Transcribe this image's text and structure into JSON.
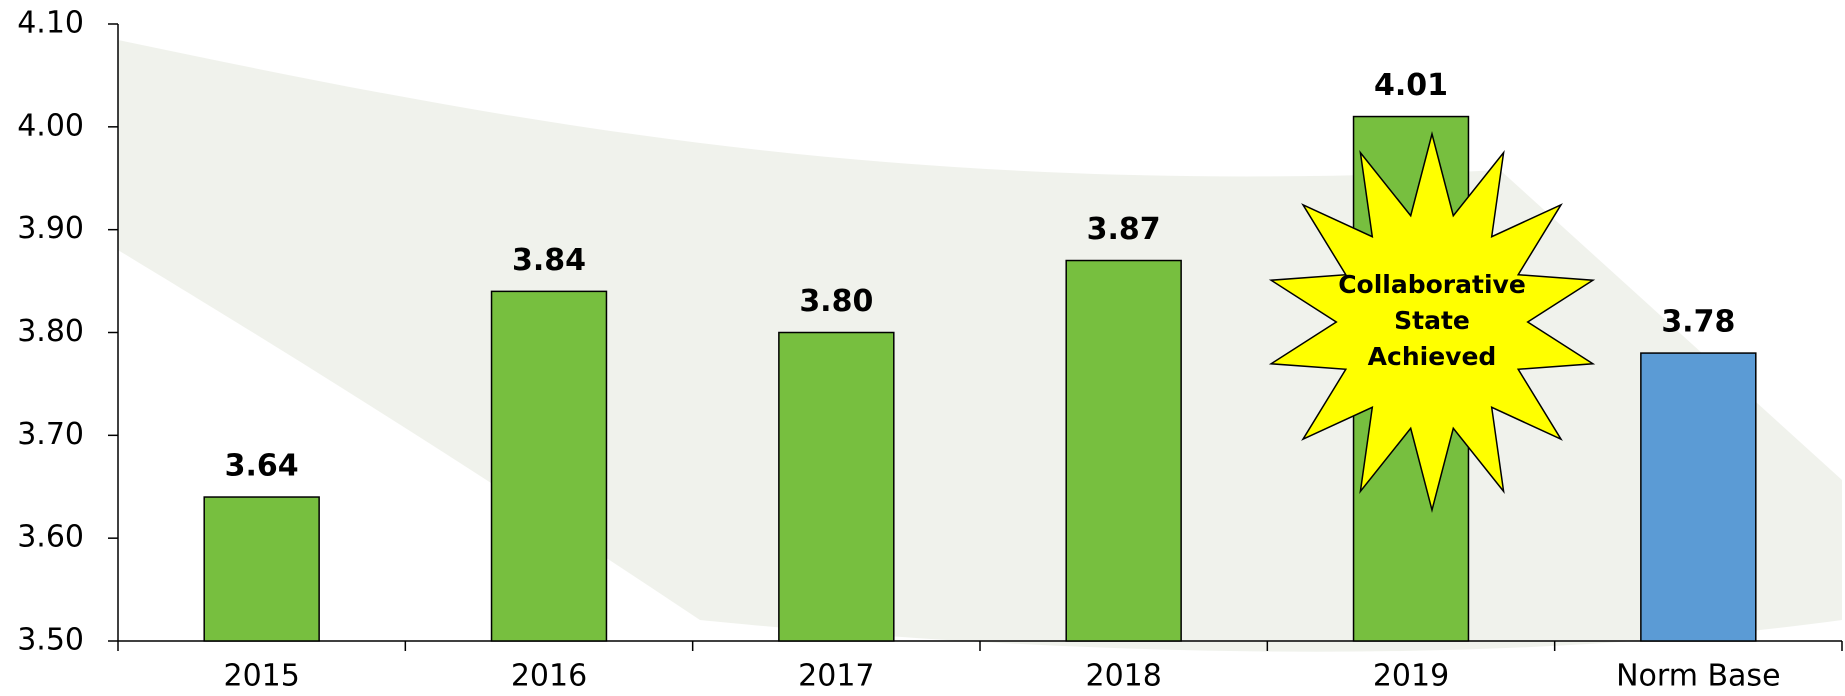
{
  "chart_data": {
    "type": "bar",
    "categories": [
      "2015",
      "2016",
      "2017",
      "2018",
      "2019",
      "Norm Base"
    ],
    "values": [
      3.64,
      3.84,
      3.8,
      3.87,
      4.01,
      3.78
    ],
    "value_labels": [
      "3.64",
      "3.84",
      "3.80",
      "3.87",
      "4.01",
      "3.78"
    ],
    "colors": [
      "#77bf3f",
      "#77bf3f",
      "#77bf3f",
      "#77bf3f",
      "#77bf3f",
      "#5b9bd5"
    ],
    "ylim": [
      3.5,
      4.1
    ],
    "yticks": [
      {
        "value": 3.5,
        "label": "3.50"
      },
      {
        "value": 3.6,
        "label": "3.60"
      },
      {
        "value": 3.7,
        "label": "3.70"
      },
      {
        "value": 3.8,
        "label": "3.80"
      },
      {
        "value": 3.9,
        "label": "3.90"
      },
      {
        "value": 4.0,
        "label": "4.00"
      },
      {
        "value": 4.1,
        "label": "4.10"
      }
    ],
    "annotation": [
      "Collaborative",
      "State",
      "Achieved"
    ],
    "grid": false
  }
}
